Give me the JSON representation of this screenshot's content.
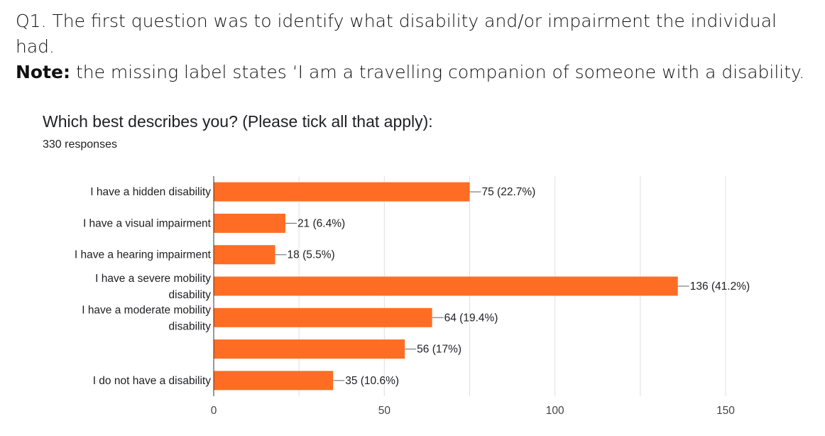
{
  "intro": {
    "line1": "Q1. The first question was to identify what disability and/or impairment the individual had.",
    "note_label": "Note:",
    "note_text": " the missing label states ‘I am a travelling companion of someone with a disability."
  },
  "chart_data": {
    "type": "bar",
    "orientation": "horizontal",
    "title": "Which best describes you? (Please tick all that apply):",
    "subtitle": "330 responses",
    "categories": [
      "I have a hidden disability",
      "I have a visual impairment",
      "I have a hearing impairment",
      "I have a severe mobility disability",
      "I have a moderate mobility disability",
      "",
      "I do not have a disability"
    ],
    "values": [
      75,
      21,
      18,
      136,
      64,
      56,
      35
    ],
    "data_labels": [
      "75 (22.7%)",
      "21 (6.4%)",
      "18 (5.5%)",
      "136 (41.2%)",
      "64 (19.4%)",
      "56 (17%)",
      "35 (10.6%)"
    ],
    "xlim": [
      0,
      150
    ],
    "xticks": [
      0,
      50,
      100,
      150
    ],
    "grid": true,
    "bar_color": "#ff6d24"
  }
}
